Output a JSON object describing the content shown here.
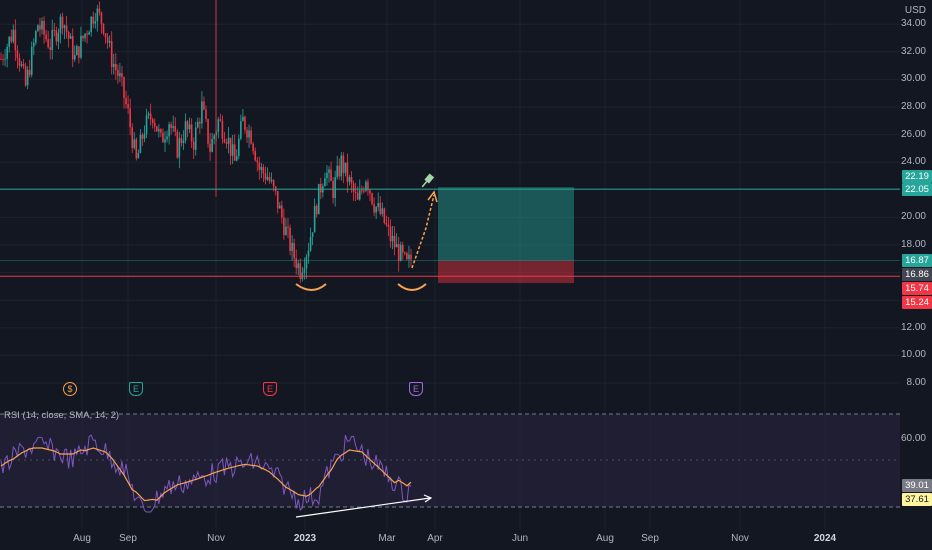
{
  "currency": "USD",
  "price_axis_labels": [
    "34.00",
    "32.00",
    "30.00",
    "28.00",
    "26.00",
    "24.00",
    "20.00",
    "18.00",
    "12.00",
    "10.00",
    "8.00"
  ],
  "price_badges": [
    {
      "value": "22.19",
      "color": "#26a69a"
    },
    {
      "value": "22.05",
      "color": "#26a69a"
    },
    {
      "value": "16.87",
      "color": "#26a69a"
    },
    {
      "value": "16.86",
      "color": "#434651"
    },
    {
      "value": "15.74",
      "color": "#f23645"
    },
    {
      "value": "15.24",
      "color": "#f23645"
    }
  ],
  "rsi": {
    "title": "RSI (14, close, SMA, 14, 2)",
    "axis_label": "60.00",
    "badges": [
      {
        "value": "39.01",
        "color": "#787b86"
      },
      {
        "value": "37.61",
        "color": "#fff59d"
      }
    ]
  },
  "time_axis": [
    "Aug",
    "Sep",
    "Nov",
    "2023",
    "Mar",
    "Apr",
    "Jun",
    "Aug",
    "Sep",
    "Nov",
    "2024"
  ],
  "events": [
    {
      "glyph": "$",
      "color": "#f7a350",
      "shape": "round"
    },
    {
      "glyph": "E",
      "color": "#26a69a",
      "shape": "pentagon"
    },
    {
      "glyph": "E",
      "color": "#f23645",
      "shape": "pentagon"
    },
    {
      "glyph": "E",
      "color": "#9c6ade",
      "shape": "pentagon"
    }
  ],
  "chart_data": {
    "type": "candlestick",
    "ylabel": "USD",
    "price_levels": {
      "resistance": 22.05,
      "support": 15.74
    },
    "position": {
      "target": 22.19,
      "entry": 16.87,
      "stop": 15.24
    },
    "colors": {
      "up": "#26a69a",
      "down": "#f23645",
      "rsi": "#7e57c2",
      "rsi_ma": "#f7a350",
      "projection": "#f7a350"
    },
    "close_keypoints": [
      [
        0,
        31.5
      ],
      [
        6,
        33.5
      ],
      [
        12,
        29.5
      ],
      [
        18,
        34.0
      ],
      [
        24,
        32.5
      ],
      [
        30,
        34.5
      ],
      [
        36,
        31.5
      ],
      [
        40,
        33.0
      ],
      [
        46,
        35.0
      ],
      [
        50,
        34.0
      ],
      [
        54,
        31.5
      ],
      [
        58,
        30.0
      ],
      [
        62,
        27.5
      ],
      [
        66,
        24.0
      ],
      [
        70,
        26.5
      ],
      [
        74,
        27.5
      ],
      [
        78,
        25.5
      ],
      [
        82,
        27.0
      ],
      [
        86,
        25.0
      ],
      [
        90,
        26.5
      ],
      [
        94,
        25.5
      ],
      [
        98,
        28.0
      ],
      [
        102,
        25.0
      ],
      [
        106,
        27.0
      ],
      [
        110,
        26.0
      ],
      [
        114,
        24.0
      ],
      [
        118,
        27.0
      ],
      [
        122,
        26.0
      ],
      [
        126,
        23.5
      ],
      [
        130,
        23.0
      ],
      [
        134,
        21.5
      ],
      [
        138,
        19.5
      ],
      [
        142,
        17.5
      ],
      [
        146,
        16.2
      ],
      [
        150,
        18.0
      ],
      [
        154,
        21.0
      ],
      [
        158,
        23.5
      ],
      [
        162,
        22.0
      ],
      [
        166,
        24.0
      ],
      [
        170,
        22.5
      ],
      [
        174,
        21.0
      ],
      [
        178,
        23.0
      ],
      [
        182,
        21.0
      ],
      [
        186,
        20.0
      ],
      [
        190,
        18.5
      ],
      [
        194,
        17.5
      ],
      [
        198,
        16.5
      ],
      [
        200,
        17.0
      ]
    ]
  }
}
